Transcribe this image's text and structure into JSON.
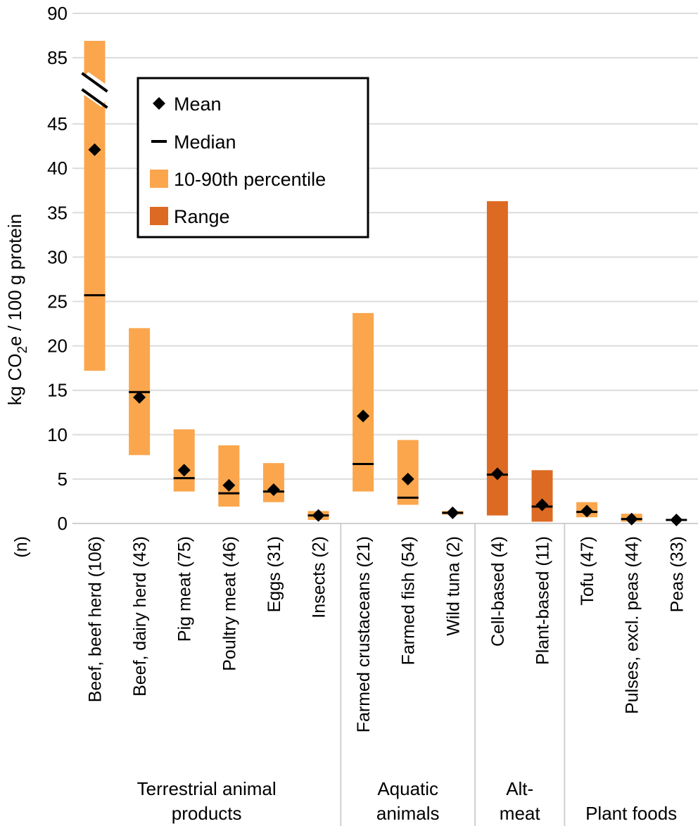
{
  "chart_data": {
    "type": "bar",
    "subtype": "floating-range with mean and median markers",
    "ylabel_parts": [
      "kg CO",
      "2",
      "e / 100 g protein"
    ],
    "n_label": "(n)",
    "y_ticks_lower": [
      "0",
      "5",
      "10",
      "15",
      "20",
      "25",
      "30",
      "35",
      "40",
      "45"
    ],
    "y_ticks_upper": [
      "85",
      "90"
    ],
    "ylim_lower": [
      0,
      48
    ],
    "ylim_upper": [
      84,
      90
    ],
    "axis_break": true,
    "legend": {
      "position": "top-left",
      "entries": [
        {
          "key": "mean",
          "label": "Mean"
        },
        {
          "key": "median",
          "label": "Median"
        },
        {
          "key": "p10_90",
          "label": "10-90th percentile"
        },
        {
          "key": "range",
          "label": "Range"
        }
      ]
    },
    "colors": {
      "p10_90": "#fba64d",
      "range": "#dd6a23",
      "marker": "#000000",
      "grid": "#dcdcdc"
    },
    "categories": [
      {
        "label": "Beef, beef herd (106)",
        "group": 0,
        "bar": "p10_90",
        "low": 17.2,
        "high": 86.9,
        "mean": 42.1,
        "median": 25.7
      },
      {
        "label": "Beef, dairy herd (43)",
        "group": 0,
        "bar": "p10_90",
        "low": 7.7,
        "high": 22.0,
        "mean": 14.2,
        "median": 14.8
      },
      {
        "label": "Pig meat (75)",
        "group": 0,
        "bar": "p10_90",
        "low": 3.6,
        "high": 10.6,
        "mean": 6.0,
        "median": 5.1
      },
      {
        "label": "Poultry meat (46)",
        "group": 0,
        "bar": "p10_90",
        "low": 1.9,
        "high": 8.8,
        "mean": 4.3,
        "median": 3.4
      },
      {
        "label": "Eggs (31)",
        "group": 0,
        "bar": "p10_90",
        "low": 2.4,
        "high": 6.8,
        "mean": 3.8,
        "median": 3.6
      },
      {
        "label": "Insects (2)",
        "group": 0,
        "bar": "p10_90",
        "low": 0.4,
        "high": 1.4,
        "mean": 0.9,
        "median": 0.9
      },
      {
        "label": "Farmed crustaceans (21)",
        "group": 1,
        "bar": "p10_90",
        "low": 3.6,
        "high": 23.7,
        "mean": 12.1,
        "median": 6.7
      },
      {
        "label": "Farmed fish (54)",
        "group": 1,
        "bar": "p10_90",
        "low": 2.1,
        "high": 9.4,
        "mean": 5.0,
        "median": 2.9
      },
      {
        "label": "Wild tuna (2)",
        "group": 1,
        "bar": "p10_90",
        "low": 1.0,
        "high": 1.4,
        "mean": 1.2,
        "median": 1.2
      },
      {
        "label": "Cell-based (4)",
        "group": 2,
        "bar": "range",
        "low": 0.9,
        "high": 36.3,
        "mean": 5.6,
        "median": 5.5
      },
      {
        "label": "Plant-based (11)",
        "group": 2,
        "bar": "range",
        "low": 0.2,
        "high": 6.0,
        "mean": 2.1,
        "median": 1.9
      },
      {
        "label": "Tofu (47)",
        "group": 3,
        "bar": "p10_90",
        "low": 0.7,
        "high": 2.4,
        "mean": 1.4,
        "median": 1.3
      },
      {
        "label": "Pulses, excl. peas (44)",
        "group": 3,
        "bar": "p10_90",
        "low": 0.2,
        "high": 1.1,
        "mean": 0.5,
        "median": 0.5
      },
      {
        "label": "Peas (33)",
        "group": 3,
        "bar": "p10_90",
        "low": 0.3,
        "high": 0.5,
        "mean": 0.4,
        "median": 0.4
      }
    ],
    "groups": [
      {
        "lines": [
          "Terrestrial animal",
          "products"
        ]
      },
      {
        "lines": [
          "Aquatic",
          "animals"
        ]
      },
      {
        "lines": [
          "Alt-",
          "meat"
        ]
      },
      {
        "lines": [
          "Plant foods"
        ]
      }
    ]
  }
}
